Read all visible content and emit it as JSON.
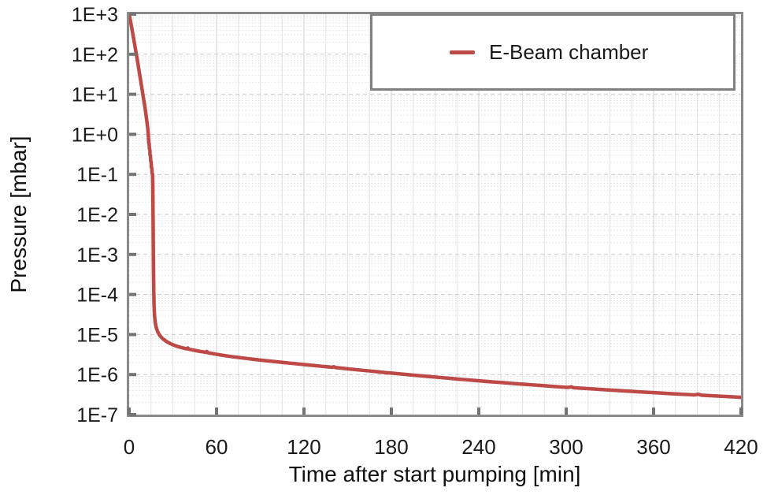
{
  "figure": {
    "type_note": "semi-log line chart of chamber pressure vs pump-down time"
  },
  "colors": {
    "series_red": "#BE4A47",
    "plot_border": "#8a8a8a",
    "tick_stub": "#737373",
    "grid_major_h": "#c9c9c9",
    "grid_minor_h": "#e0e0e0",
    "grid_major_v": "#d2d2d2",
    "grid_minor_v": "#e4e4e4",
    "text": "#1a1a1a",
    "background": "#ffffff",
    "legend_border": "#808080"
  },
  "chart_data": {
    "type": "line",
    "title": "",
    "xlabel": "Time after start pumping [min]",
    "ylabel": "Pressure [mbar]",
    "xlim": [
      0,
      420
    ],
    "x_major_ticks": [
      0,
      60,
      120,
      180,
      240,
      300,
      360,
      420
    ],
    "x_tick_labels": [
      "0",
      "60",
      "120",
      "180",
      "240",
      "300",
      "360",
      "420"
    ],
    "x_minor_interval": 15,
    "y_scale": "log",
    "ylim": [
      1e-07,
      1000
    ],
    "y_decade_exponents": [
      3,
      2,
      1,
      0,
      -1,
      -2,
      -3,
      -4,
      -5,
      -6,
      -7
    ],
    "y_tick_labels": [
      "1E+3",
      "1E+2",
      "1E+1",
      "1E+0",
      "1E-1",
      "1E-2",
      "1E-3",
      "1E-4",
      "1E-5",
      "1E-6",
      "1E-7"
    ],
    "grid": "major-dashed + log-minor-dotted + vertical-minor-15min",
    "legend": {
      "position": "top-right",
      "entries": [
        {
          "label": "E-Beam chamber",
          "color": "#BE4A47"
        }
      ]
    },
    "series": [
      {
        "name": "E-Beam chamber",
        "color": "#BE4A47",
        "line_width": 4.5,
        "points": [
          [
            0,
            1000
          ],
          [
            1,
            650
          ],
          [
            2,
            410
          ],
          [
            3,
            255
          ],
          [
            4,
            158
          ],
          [
            5,
            97
          ],
          [
            6,
            59
          ],
          [
            7,
            35
          ],
          [
            8,
            21
          ],
          [
            9,
            12.4
          ],
          [
            10,
            7.3
          ],
          [
            10.8,
            4.9
          ],
          [
            11.5,
            3.2
          ],
          [
            12.2,
            2.05
          ],
          [
            12.8,
            1.38
          ],
          [
            13.1,
            1.02
          ],
          [
            13.3,
            0.8
          ],
          [
            13.45,
            0.62
          ],
          [
            13.75,
            0.58
          ],
          [
            13.9,
            0.44
          ],
          [
            14.2,
            0.41
          ],
          [
            14.35,
            0.305
          ],
          [
            14.65,
            0.29
          ],
          [
            14.8,
            0.215
          ],
          [
            15.1,
            0.205
          ],
          [
            15.25,
            0.15
          ],
          [
            15.6,
            0.142
          ],
          [
            15.75,
            0.107
          ],
          [
            16.1,
            0.1
          ],
          [
            16.25,
            0.052
          ],
          [
            16.4,
            0.011
          ],
          [
            16.55,
            0.0022
          ],
          [
            16.7,
            0.00045
          ],
          [
            16.9,
            0.00013
          ],
          [
            17.1,
            5.5e-05
          ],
          [
            17.4,
            3.1e-05
          ],
          [
            17.8,
            2.15e-05
          ],
          [
            18.3,
            1.65e-05
          ],
          [
            18.9,
            1.38e-05
          ],
          [
            19.6,
            1.18e-05
          ],
          [
            20.4,
            1.03e-05
          ],
          [
            21.3,
            9.2e-06
          ],
          [
            22.4,
            8.3e-06
          ],
          [
            23.6,
            7.6e-06
          ],
          [
            25,
            6.95e-06
          ],
          [
            26.5,
            6.4e-06
          ],
          [
            28,
            6e-06
          ],
          [
            30,
            5.55e-06
          ],
          [
            32,
            5.2e-06
          ],
          [
            34,
            4.95e-06
          ],
          [
            36,
            4.72e-06
          ],
          [
            38,
            4.52e-06
          ],
          [
            39.5,
            4.38e-06
          ],
          [
            40.3,
            4.62e-06
          ],
          [
            41,
            4.3e-06
          ],
          [
            43.5,
            4.12e-06
          ],
          [
            46,
            3.95e-06
          ],
          [
            48.5,
            3.8e-06
          ],
          [
            51,
            3.68e-06
          ],
          [
            52.6,
            3.58e-06
          ],
          [
            53.3,
            3.78e-06
          ],
          [
            54,
            3.52e-06
          ],
          [
            56.5,
            3.38e-06
          ],
          [
            59,
            3.25e-06
          ],
          [
            62,
            3.12e-06
          ],
          [
            65,
            3e-06
          ],
          [
            68,
            2.89e-06
          ],
          [
            71,
            2.79e-06
          ],
          [
            74,
            2.7e-06
          ],
          [
            78,
            2.59e-06
          ],
          [
            82,
            2.49e-06
          ],
          [
            86,
            2.39e-06
          ],
          [
            90,
            2.3e-06
          ],
          [
            94,
            2.22e-06
          ],
          [
            98,
            2.14e-06
          ],
          [
            102,
            2.07e-06
          ],
          [
            106,
            2e-06
          ],
          [
            110,
            1.93e-06
          ],
          [
            114,
            1.87e-06
          ],
          [
            118,
            1.81e-06
          ],
          [
            122,
            1.75e-06
          ],
          [
            127,
            1.68e-06
          ],
          [
            132,
            1.61e-06
          ],
          [
            137,
            1.55e-06
          ],
          [
            139.5,
            1.52e-06
          ],
          [
            140.5,
            1.57e-06
          ],
          [
            141.5,
            1.5e-06
          ],
          [
            146,
            1.44e-06
          ],
          [
            151,
            1.38e-06
          ],
          [
            156,
            1.32e-06
          ],
          [
            161,
            1.27e-06
          ],
          [
            166,
            1.22e-06
          ],
          [
            171,
            1.17e-06
          ],
          [
            176,
            1.12e-06
          ],
          [
            181,
            1.08e-06
          ],
          [
            186,
            1.04e-06
          ],
          [
            191,
            1e-06
          ],
          [
            196,
            9.6e-07
          ],
          [
            201,
            9.25e-07
          ],
          [
            206,
            8.9e-07
          ],
          [
            211,
            8.6e-07
          ],
          [
            216,
            8.3e-07
          ],
          [
            221,
            8e-07
          ],
          [
            226,
            7.7e-07
          ],
          [
            231,
            7.45e-07
          ],
          [
            236,
            7.2e-07
          ],
          [
            241,
            6.95e-07
          ],
          [
            246,
            6.7e-07
          ],
          [
            251,
            6.5e-07
          ],
          [
            256,
            6.3e-07
          ],
          [
            261,
            6.1e-07
          ],
          [
            266,
            5.9e-07
          ],
          [
            271,
            5.72e-07
          ],
          [
            276,
            5.55e-07
          ],
          [
            281,
            5.38e-07
          ],
          [
            286,
            5.22e-07
          ],
          [
            291,
            5.06e-07
          ],
          [
            296,
            4.91e-07
          ],
          [
            301,
            4.77e-07
          ],
          [
            303.5,
            4.95e-07
          ],
          [
            305,
            4.7e-07
          ],
          [
            310,
            4.57e-07
          ],
          [
            315,
            4.45e-07
          ],
          [
            320,
            4.33e-07
          ],
          [
            325,
            4.21e-07
          ],
          [
            330,
            4.1e-07
          ],
          [
            335,
            4e-07
          ],
          [
            340,
            3.9e-07
          ],
          [
            345,
            3.8e-07
          ],
          [
            350,
            3.71e-07
          ],
          [
            355,
            3.62e-07
          ],
          [
            360,
            3.53e-07
          ],
          [
            365,
            3.45e-07
          ],
          [
            370,
            3.37e-07
          ],
          [
            375,
            3.29e-07
          ],
          [
            380,
            3.22e-07
          ],
          [
            385,
            3.15e-07
          ],
          [
            388,
            3.1e-07
          ],
          [
            390.5,
            3.22e-07
          ],
          [
            393,
            3.05e-07
          ],
          [
            398,
            2.98e-07
          ],
          [
            403,
            2.91e-07
          ],
          [
            408,
            2.85e-07
          ],
          [
            413,
            2.79e-07
          ],
          [
            417,
            2.74e-07
          ],
          [
            420,
            2.7e-07
          ]
        ]
      }
    ]
  }
}
